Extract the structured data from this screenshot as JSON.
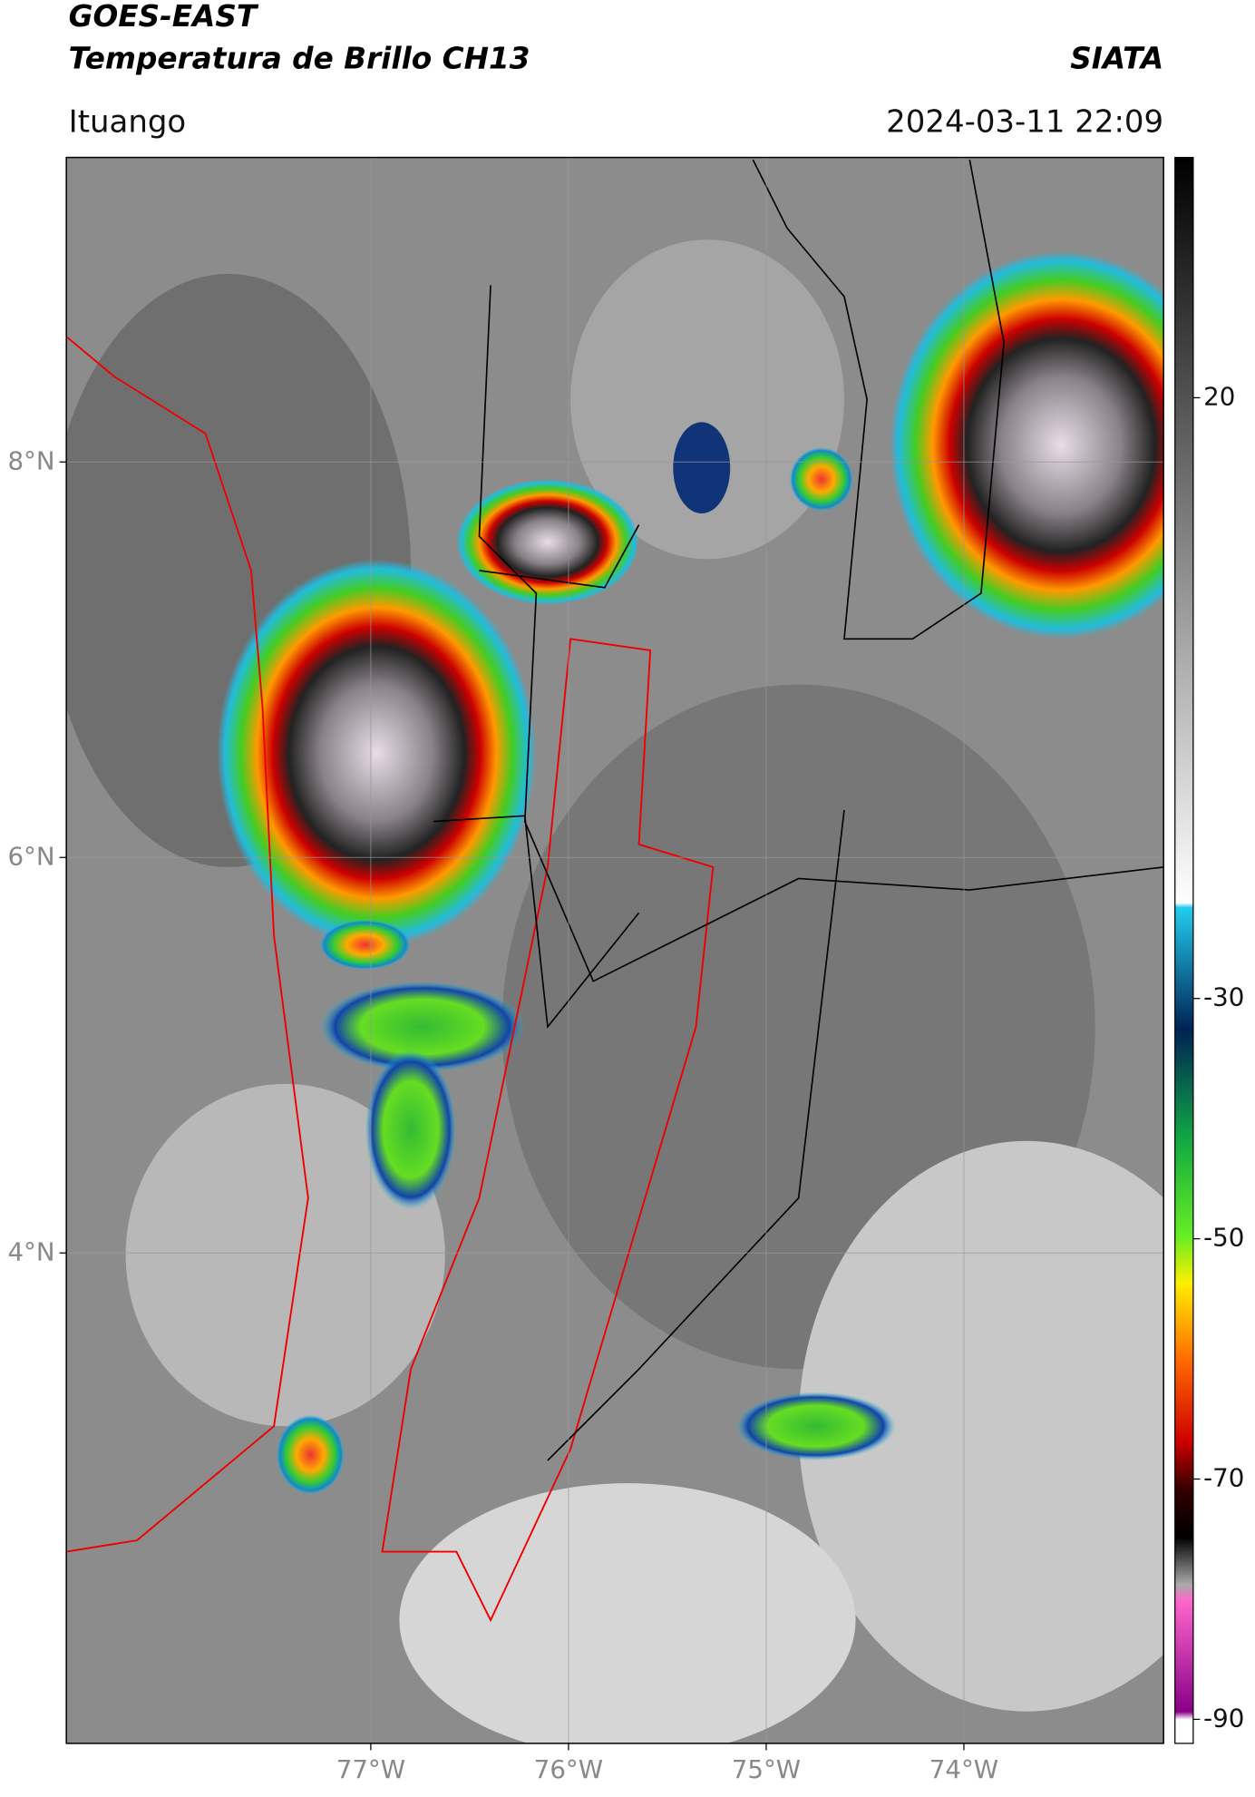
{
  "header": {
    "title": "GOES-EAST",
    "subtitle": "Temperatura de Brillo CH13",
    "organization": "SIATA",
    "location": "Ituango",
    "datetime": "2024-03-11 22:09"
  },
  "map": {
    "xlim": [
      -78.54,
      -72.99
    ],
    "ylim": [
      1.52,
      9.54
    ],
    "xticks": [
      {
        "value": -77,
        "label": "77°W"
      },
      {
        "value": -76,
        "label": "76°W"
      },
      {
        "value": -75,
        "label": "75°W"
      },
      {
        "value": -74,
        "label": "74°W"
      }
    ],
    "yticks": [
      {
        "value": 8,
        "label": "8°N"
      },
      {
        "value": 6,
        "label": "6°N"
      },
      {
        "value": 4,
        "label": "4°N"
      }
    ],
    "grid": true
  },
  "colorbar": {
    "lim": [
      40,
      -92
    ],
    "ticks": [
      20,
      -30,
      -50,
      -70,
      -90
    ]
  }
}
